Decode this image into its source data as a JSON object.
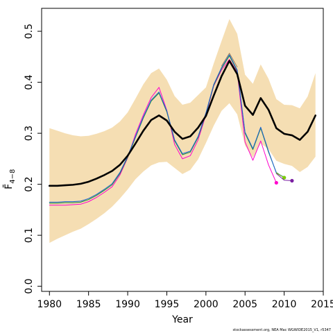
{
  "chart_data": {
    "type": "line",
    "title": "",
    "xlabel": "Year",
    "ylabel": "F̄",
    "ylabel_subscript": "4−8",
    "xlim": [
      1979,
      2015
    ],
    "ylim": [
      -0.01,
      0.545
    ],
    "x_ticks": [
      1980,
      1985,
      1990,
      1995,
      2000,
      2005,
      2010,
      2015
    ],
    "y_ticks": [
      0.0,
      0.1,
      0.2,
      0.3,
      0.4,
      0.5
    ],
    "y_tick_labels": [
      "0.0",
      "0.1",
      "0.2",
      "0.3",
      "0.4",
      "0.5"
    ],
    "grid": false,
    "legend": "none",
    "band": {
      "color": "#F5DEB3",
      "x": [
        1980,
        1981,
        1982,
        1983,
        1984,
        1985,
        1986,
        1987,
        1988,
        1989,
        1990,
        1991,
        1992,
        1993,
        1994,
        1995,
        1996,
        1997,
        1998,
        1999,
        2000,
        2001,
        2002,
        2003,
        2004,
        2005,
        2006,
        2007,
        2008,
        2009,
        2010,
        2011,
        2012,
        2013,
        2014
      ],
      "upper": [
        0.31,
        0.305,
        0.3,
        0.296,
        0.294,
        0.295,
        0.299,
        0.304,
        0.311,
        0.323,
        0.341,
        0.368,
        0.396,
        0.418,
        0.427,
        0.405,
        0.373,
        0.356,
        0.36,
        0.375,
        0.39,
        0.437,
        0.481,
        0.524,
        0.495,
        0.415,
        0.397,
        0.435,
        0.407,
        0.367,
        0.356,
        0.355,
        0.349,
        0.372,
        0.418
      ],
      "lower": [
        0.085,
        0.093,
        0.1,
        0.107,
        0.113,
        0.122,
        0.132,
        0.143,
        0.156,
        0.172,
        0.19,
        0.21,
        0.225,
        0.237,
        0.243,
        0.244,
        0.232,
        0.22,
        0.228,
        0.249,
        0.281,
        0.315,
        0.344,
        0.359,
        0.337,
        0.276,
        0.252,
        0.28,
        0.269,
        0.246,
        0.24,
        0.236,
        0.224,
        0.234,
        0.254
      ]
    },
    "series": [
      {
        "color": "#000000",
        "width": 2.6,
        "end_marker": false,
        "x": [
          1980,
          1981,
          1982,
          1983,
          1984,
          1985,
          1986,
          1987,
          1988,
          1989,
          1990,
          1991,
          1992,
          1993,
          1994,
          1995,
          1996,
          1997,
          1998,
          1999,
          2000,
          2001,
          2002,
          2003,
          2004,
          2005,
          2006,
          2007,
          2008,
          2009,
          2010,
          2011,
          2012,
          2013,
          2014
        ],
        "values": [
          0.197,
          0.197,
          0.198,
          0.199,
          0.201,
          0.205,
          0.211,
          0.218,
          0.226,
          0.238,
          0.256,
          0.28,
          0.305,
          0.326,
          0.335,
          0.325,
          0.303,
          0.289,
          0.294,
          0.311,
          0.334,
          0.374,
          0.412,
          0.442,
          0.416,
          0.354,
          0.336,
          0.369,
          0.346,
          0.31,
          0.299,
          0.296,
          0.287,
          0.303,
          0.335
        ]
      },
      {
        "color": "#FF00CC",
        "width": 1.0,
        "end_marker": true,
        "x": [
          1980,
          1981,
          1982,
          1983,
          1984,
          1985,
          1986,
          1987,
          1988,
          1989,
          1990,
          1991,
          1992,
          1993,
          1994,
          1995,
          1996,
          1997,
          1998,
          1999,
          2000,
          2001,
          2002,
          2003,
          2004,
          2005,
          2006,
          2007,
          2008,
          2009
        ],
        "values": [
          0.159,
          0.159,
          0.159,
          0.16,
          0.161,
          0.166,
          0.174,
          0.184,
          0.195,
          0.218,
          0.252,
          0.298,
          0.336,
          0.37,
          0.39,
          0.345,
          0.278,
          0.25,
          0.256,
          0.287,
          0.336,
          0.393,
          0.424,
          0.445,
          0.42,
          0.283,
          0.247,
          0.285,
          0.238,
          0.203
        ]
      },
      {
        "color": "#228833",
        "width": 1.0,
        "end_marker": true,
        "x": [
          1980,
          1981,
          1982,
          1983,
          1984,
          1985,
          1986,
          1987,
          1988,
          1989,
          1990,
          1991,
          1992,
          1993,
          1994,
          1995,
          1996,
          1997,
          1998,
          1999,
          2000,
          2001,
          2002,
          2003,
          2004,
          2005,
          2006,
          2007,
          2008,
          2009,
          2010
        ],
        "values": [
          0.163,
          0.163,
          0.164,
          0.164,
          0.165,
          0.17,
          0.178,
          0.188,
          0.199,
          0.221,
          0.253,
          0.292,
          0.33,
          0.363,
          0.379,
          0.342,
          0.285,
          0.258,
          0.263,
          0.292,
          0.338,
          0.394,
          0.427,
          0.452,
          0.422,
          0.3,
          0.268,
          0.31,
          0.263,
          0.223,
          0.213
        ]
      },
      {
        "color": "#1E63D6",
        "width": 1.0,
        "end_marker": false,
        "x": [
          1980,
          1981,
          1982,
          1983,
          1984,
          1985,
          1986,
          1987,
          1988,
          1989,
          1990,
          1991,
          1992,
          1993,
          1994,
          1995,
          1996,
          1997,
          1998,
          1999,
          2000,
          2001,
          2002,
          2003,
          2004,
          2005,
          2006,
          2007,
          2008,
          2009,
          2010
        ],
        "values": [
          0.165,
          0.165,
          0.166,
          0.166,
          0.167,
          0.172,
          0.18,
          0.19,
          0.201,
          0.223,
          0.255,
          0.294,
          0.332,
          0.365,
          0.381,
          0.344,
          0.287,
          0.26,
          0.265,
          0.294,
          0.34,
          0.396,
          0.429,
          0.454,
          0.424,
          0.302,
          0.27,
          0.312,
          0.265,
          0.222,
          0.214
        ]
      },
      {
        "color": "#7CCD00",
        "width": 1.0,
        "end_marker": true,
        "x": [
          2009,
          2010
        ],
        "values": [
          0.222,
          0.213
        ]
      },
      {
        "color": "#7A1FA2",
        "width": 1.0,
        "end_marker": true,
        "x": [
          2009,
          2010,
          2011
        ],
        "values": [
          0.221,
          0.208,
          0.207
        ]
      },
      {
        "color": "#8B6F47",
        "width": 0.8,
        "end_marker": false,
        "x": [
          2002,
          2003,
          2004
        ],
        "values": [
          0.432,
          0.457,
          0.43
        ]
      }
    ]
  },
  "footer_text": "stockassessment.org, NEA Mac WGWIDE2015_V1, r5347"
}
